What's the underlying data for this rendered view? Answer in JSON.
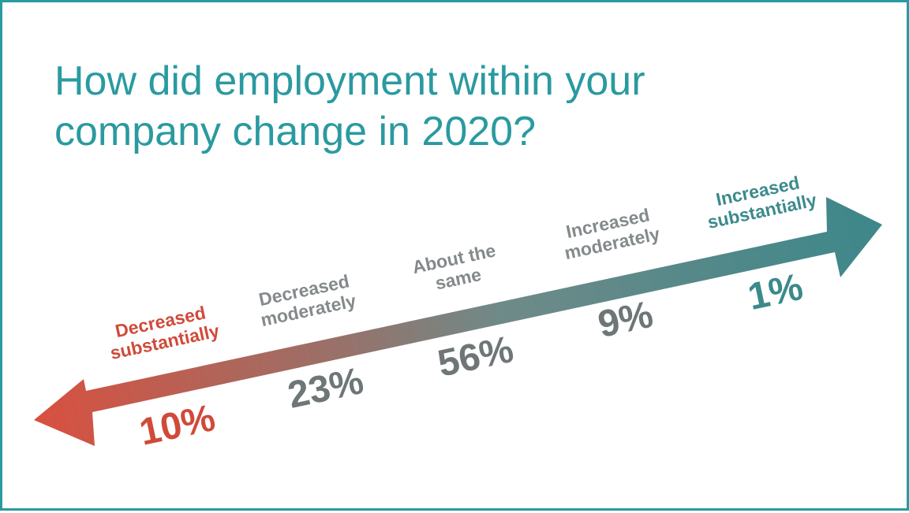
{
  "title_lines": [
    "How did employment within your",
    "company change in 2020?"
  ],
  "colors": {
    "frame": "#2a9aa0",
    "title": "#2a9aa0",
    "arrow_left": "#d9503f",
    "arrow_right": "#3d878a",
    "label_gray": "#848a8c",
    "value_gray": "#6e7677",
    "red": "#d04a3a",
    "teal": "#3b8a8c"
  },
  "chart_data": {
    "type": "bar",
    "title": "How did employment within your company change in 2020?",
    "categories": [
      "Decreased substantially",
      "Decreased moderately",
      "About the same",
      "Increased moderately",
      "Increased substantially"
    ],
    "values": [
      10,
      23,
      56,
      9,
      1
    ],
    "unit": "%",
    "category_lines": [
      [
        "Decreased",
        "substantially"
      ],
      [
        "Decreased",
        "moderately"
      ],
      [
        "About the",
        "same"
      ],
      [
        "Increased",
        "moderately"
      ],
      [
        "Increased",
        "substantially"
      ]
    ],
    "value_labels": [
      "10%",
      "23%",
      "56%",
      "9%",
      "1%"
    ]
  }
}
